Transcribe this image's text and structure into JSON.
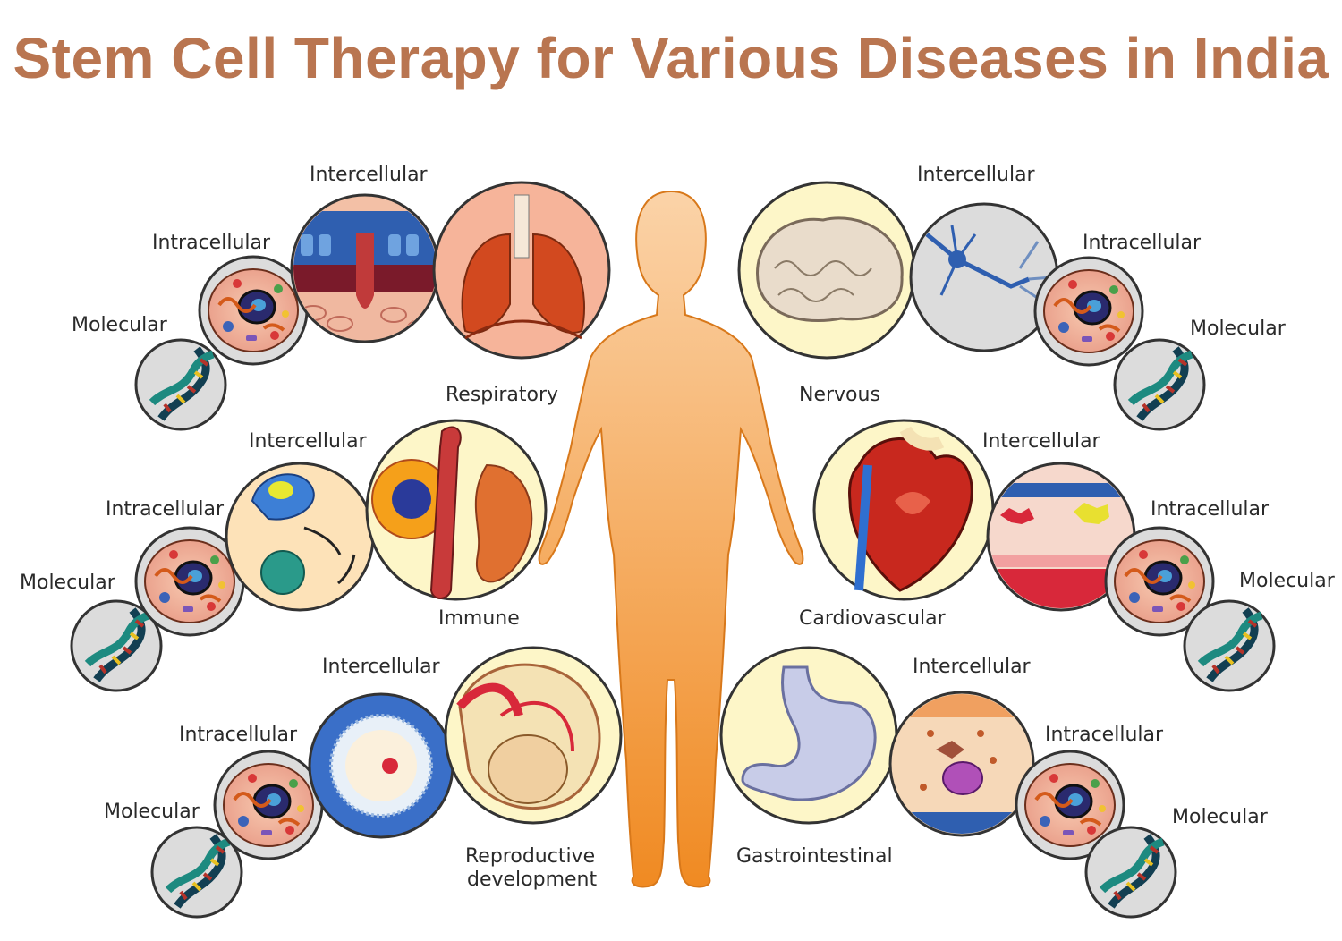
{
  "title": "Stem Cell Therapy for Various Diseases in India",
  "systems": {
    "respiratory": {
      "name": "Respiratory",
      "intercellular": "Intercellular",
      "intracellular": "Intracellular",
      "molecular": "Molecular"
    },
    "nervous": {
      "name": "Nervous",
      "intercellular": "Intercellular",
      "intracellular": "Intracellular",
      "molecular": "Molecular"
    },
    "immune": {
      "name": "Immune",
      "intercellular": "Intercellular",
      "intracellular": "Intracellular",
      "molecular": "Molecular"
    },
    "cardiovascular": {
      "name": "Cardiovascular",
      "intercellular": "Intercellular",
      "intracellular": "Intracellular",
      "molecular": "Molecular"
    },
    "reproductive": {
      "name_line1": "Reproductive",
      "name_line2": "development",
      "intercellular": "Intercellular",
      "intracellular": "Intracellular",
      "molecular": "Molecular"
    },
    "gastrointestinal": {
      "name": "Gastrointestinal",
      "intercellular": "Intercellular",
      "intracellular": "Intracellular",
      "molecular": "Molecular"
    }
  },
  "colors": {
    "title": "#b97550",
    "body_top": "#fbd3a8",
    "body_bottom": "#f08a22",
    "circle_bg": "#fdf6c8",
    "circle_outline": "#333333",
    "molecular_bg": "#dcdcdc"
  }
}
